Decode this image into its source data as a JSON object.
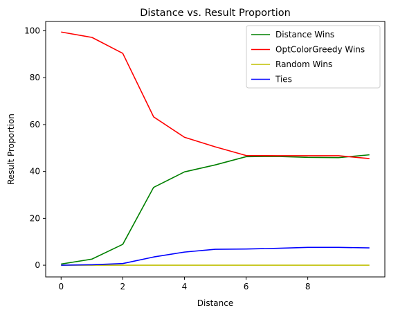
{
  "chart_data": {
    "type": "line",
    "title": "Distance vs. Result Proportion",
    "xlabel": "Distance",
    "ylabel": "Result Proportion",
    "x": [
      0,
      1,
      2,
      3,
      4,
      5,
      6,
      7,
      8,
      9,
      10
    ],
    "xlim": [
      -0.5,
      10.5
    ],
    "ylim": [
      -5,
      104
    ],
    "xticks": [
      0,
      2,
      4,
      6,
      8
    ],
    "yticks": [
      0,
      20,
      40,
      60,
      80,
      100
    ],
    "grid": false,
    "legend_position": "top-right",
    "series": [
      {
        "name": "Distance Wins",
        "color": "#008000",
        "values": [
          0.5,
          2.6,
          8.9,
          33.2,
          39.8,
          42.8,
          46.3,
          46.4,
          46.0,
          45.9,
          47.1
        ]
      },
      {
        "name": "OptColorGreedy Wins",
        "color": "#ff0000",
        "values": [
          99.5,
          97.2,
          90.4,
          63.3,
          54.6,
          50.5,
          46.8,
          46.7,
          46.7,
          46.7,
          45.5
        ]
      },
      {
        "name": "Random Wins",
        "color": "#bfbf00",
        "values": [
          0,
          0,
          0,
          0,
          0,
          0,
          0,
          0,
          0,
          0,
          0
        ]
      },
      {
        "name": "Ties",
        "color": "#0000ff",
        "values": [
          0,
          0.2,
          0.7,
          3.5,
          5.6,
          6.8,
          6.9,
          7.2,
          7.6,
          7.6,
          7.4
        ]
      }
    ]
  }
}
